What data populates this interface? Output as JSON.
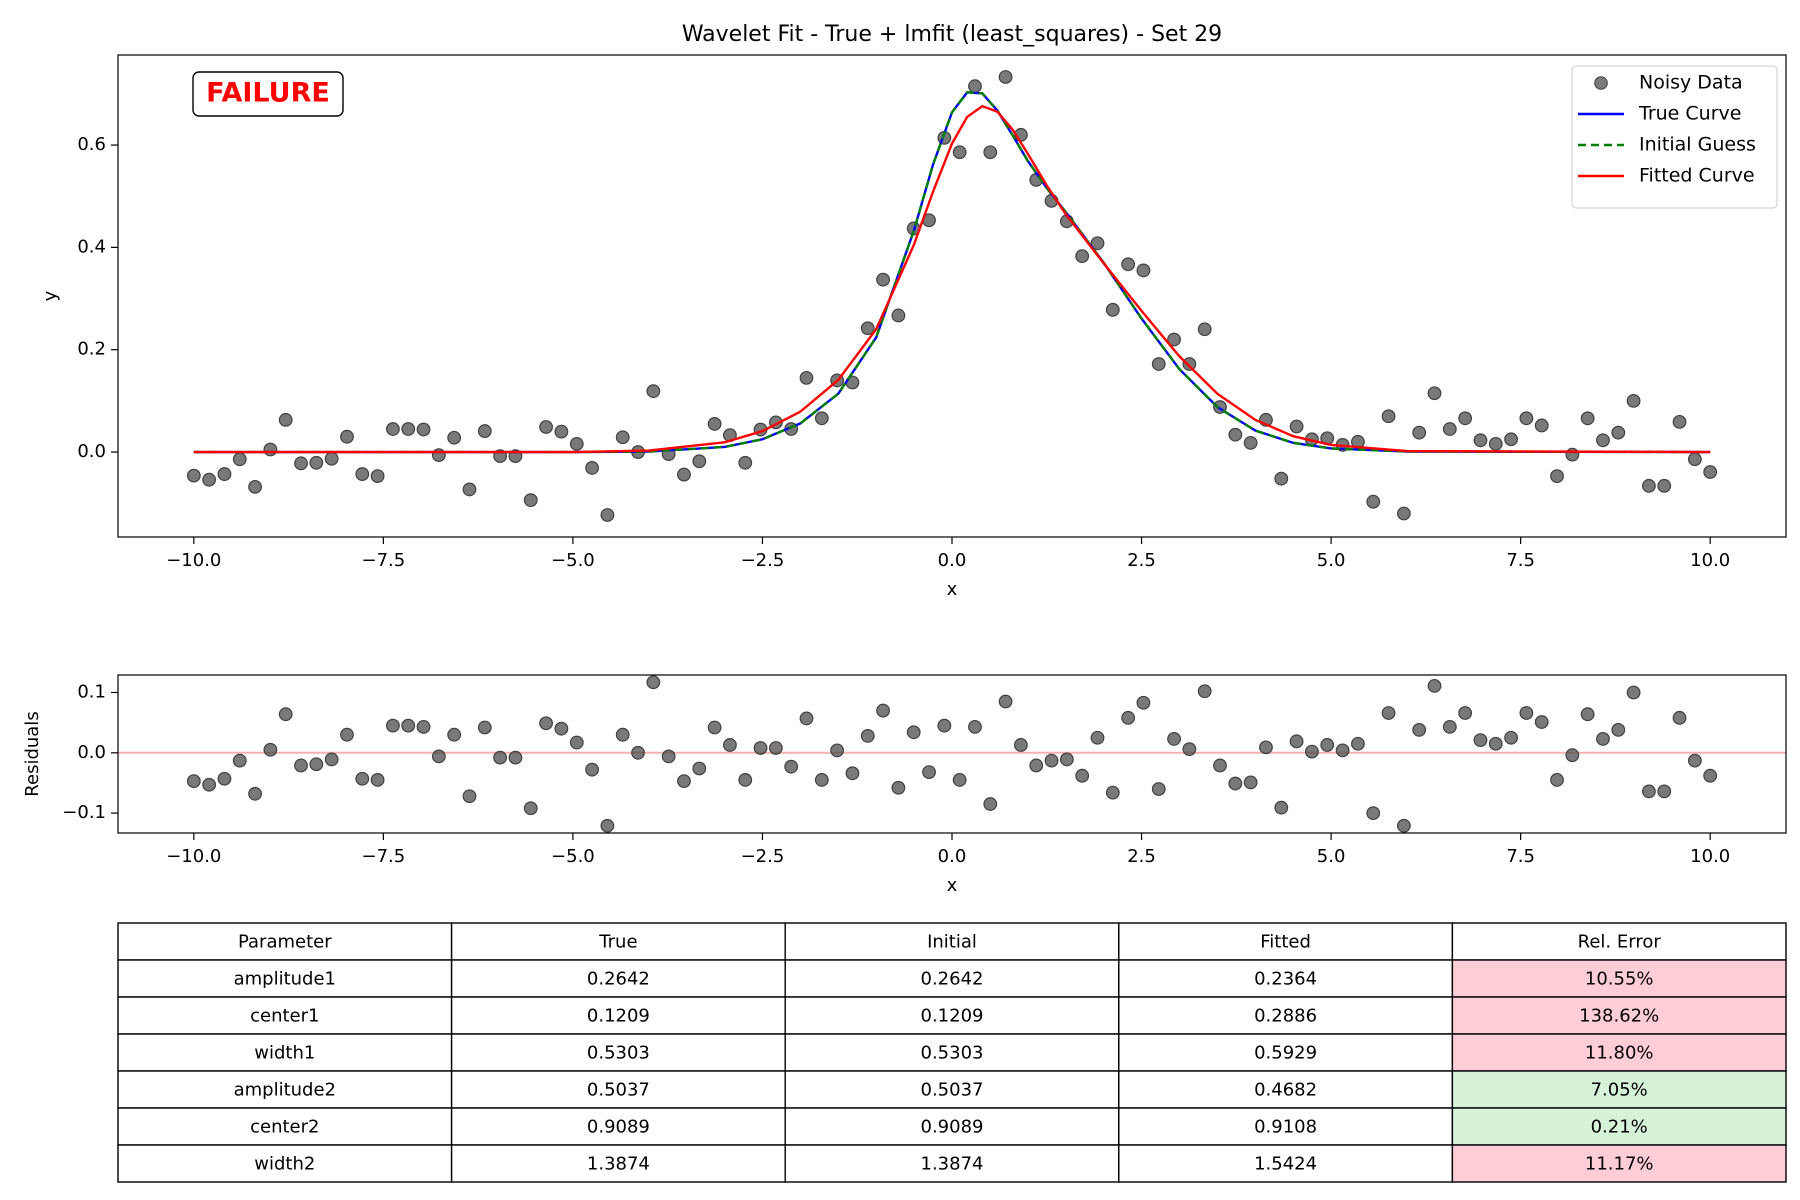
{
  "chart_data": [
    {
      "type": "scatter",
      "title": "Wavelet Fit - True + lmfit (least_squares) - Set 29",
      "annotation": "FAILURE",
      "xlabel": "x",
      "ylabel": "y",
      "xlim": [
        -11,
        11
      ],
      "ylim": [
        -0.166,
        0.776
      ],
      "xticks": [
        {
          "value": -10,
          "label": "−10.0"
        },
        {
          "value": -7.5,
          "label": "−7.5"
        },
        {
          "value": -5,
          "label": "−5.0"
        },
        {
          "value": -2.5,
          "label": "−2.5"
        },
        {
          "value": 0,
          "label": "0.0"
        },
        2.5,
        {
          "value": 5,
          "label": "5.0"
        },
        7.5,
        {
          "value": 10,
          "label": "10.0"
        }
      ],
      "yticks": [
        {
          "value": 0,
          "label": "0.0"
        },
        0.2,
        0.4,
        0.6
      ],
      "legend": "upper right",
      "series": [
        {
          "name": "Noisy Data",
          "type": "scatter",
          "color": "#404040",
          "x": [
            -10,
            -9.798,
            -9.596,
            -9.394,
            -9.192,
            -8.99,
            -8.788,
            -8.586,
            -8.384,
            -8.182,
            -7.98,
            -7.778,
            -7.576,
            -7.374,
            -7.172,
            -6.97,
            -6.768,
            -6.566,
            -6.364,
            -6.162,
            -5.96,
            -5.758,
            -5.556,
            -5.354,
            -5.152,
            -4.949,
            -4.747,
            -4.545,
            -4.343,
            -4.141,
            -3.939,
            -3.737,
            -3.535,
            -3.333,
            -3.131,
            -2.929,
            -2.727,
            -2.525,
            -2.323,
            -2.121,
            -1.919,
            -1.717,
            -1.515,
            -1.313,
            -1.111,
            -0.909,
            -0.707,
            -0.505,
            -0.303,
            -0.101,
            0.101,
            0.303,
            0.505,
            0.707,
            0.909,
            1.111,
            1.313,
            1.515,
            1.717,
            1.919,
            2.121,
            2.323,
            2.525,
            2.727,
            2.929,
            3.131,
            3.333,
            3.535,
            3.737,
            3.939,
            4.141,
            4.343,
            4.545,
            4.747,
            4.949,
            5.152,
            5.354,
            5.556,
            5.758,
            5.96,
            6.162,
            6.364,
            6.566,
            6.768,
            6.97,
            7.172,
            7.374,
            7.576,
            7.778,
            7.98,
            8.182,
            8.384,
            8.586,
            8.788,
            8.99,
            9.192,
            9.394,
            9.596,
            9.798,
            10
          ],
          "values": [
            -0.046,
            -0.054,
            -0.043,
            -0.014,
            -0.068,
            0.005,
            0.063,
            -0.022,
            -0.021,
            -0.013,
            0.03,
            -0.043,
            -0.047,
            0.045,
            0.045,
            0.044,
            -0.006,
            0.028,
            -0.073,
            0.041,
            -0.008,
            -0.008,
            -0.094,
            0.049,
            0.04,
            0.016,
            -0.031,
            -0.123,
            0.029,
            0.0,
            0.119,
            -0.004,
            -0.044,
            -0.018,
            0.055,
            0.033,
            -0.021,
            0.044,
            0.058,
            0.045,
            0.145,
            0.066,
            0.14,
            0.136,
            0.242,
            0.337,
            0.267,
            0.437,
            0.453,
            0.614,
            0.586,
            0.715,
            0.586,
            0.733,
            0.62,
            0.532,
            0.491,
            0.451,
            0.383,
            0.408,
            0.278,
            0.367,
            0.355,
            0.172,
            0.22,
            0.172,
            0.24,
            0.088,
            0.034,
            0.018,
            0.063,
            -0.052,
            0.05,
            0.025,
            0.027,
            0.014,
            0.02,
            -0.097,
            0.07,
            -0.12,
            0.038,
            0.115,
            0.045,
            0.066,
            0.023,
            0.016,
            0.025,
            0.066,
            0.052,
            -0.047,
            -0.005,
            0.066,
            0.023,
            0.038,
            0.1,
            -0.066,
            -0.066,
            0.059,
            -0.014,
            -0.039
          ]
        },
        {
          "name": "True Curve",
          "type": "line",
          "color": "#0000ff",
          "x": [
            -10,
            -5,
            -4,
            -3,
            -2.5,
            -2,
            -1.5,
            -1,
            -0.5,
            -0.25,
            0,
            0.2,
            0.4,
            0.6,
            0.8,
            1,
            1.25,
            1.5,
            2,
            2.5,
            3,
            3.5,
            4,
            4.5,
            5,
            6,
            10
          ],
          "values": [
            0,
            0,
            0.001,
            0.01,
            0.025,
            0.056,
            0.114,
            0.224,
            0.434,
            0.562,
            0.664,
            0.703,
            0.701,
            0.667,
            0.619,
            0.569,
            0.516,
            0.469,
            0.37,
            0.261,
            0.162,
            0.088,
            0.042,
            0.018,
            0.007,
            0.001,
            0
          ]
        },
        {
          "name": "Initial Guess",
          "type": "line",
          "dashed": true,
          "color": "#008000",
          "x": [
            -10,
            -5,
            -4,
            -3,
            -2.5,
            -2,
            -1.5,
            -1,
            -0.5,
            -0.25,
            0,
            0.2,
            0.4,
            0.6,
            0.8,
            1,
            1.25,
            1.5,
            2,
            2.5,
            3,
            3.5,
            4,
            4.5,
            5,
            6,
            10
          ],
          "values": [
            0,
            0,
            0.001,
            0.01,
            0.025,
            0.056,
            0.114,
            0.224,
            0.434,
            0.562,
            0.664,
            0.703,
            0.701,
            0.667,
            0.619,
            0.569,
            0.516,
            0.469,
            0.37,
            0.261,
            0.162,
            0.088,
            0.042,
            0.018,
            0.007,
            0.001,
            0
          ]
        },
        {
          "name": "Fitted Curve",
          "type": "line",
          "color": "#ff0000",
          "x": [
            -10,
            -5,
            -4,
            -3,
            -2.5,
            -2,
            -1.5,
            -1,
            -0.5,
            -0.25,
            0,
            0.2,
            0.4,
            0.6,
            0.8,
            1,
            1.25,
            1.5,
            2,
            2.5,
            3,
            3.5,
            4,
            4.5,
            5,
            6,
            10
          ],
          "values": [
            0,
            0,
            0.003,
            0.019,
            0.041,
            0.079,
            0.141,
            0.24,
            0.406,
            0.509,
            0.603,
            0.655,
            0.676,
            0.665,
            0.63,
            0.583,
            0.521,
            0.465,
            0.369,
            0.276,
            0.187,
            0.114,
            0.063,
            0.031,
            0.014,
            0.002,
            0
          ]
        }
      ]
    },
    {
      "type": "scatter",
      "xlabel": "x",
      "ylabel": "Residuals",
      "xlim": [
        -11,
        11
      ],
      "ylim": [
        -0.133,
        0.129
      ],
      "xticks": [
        {
          "value": -10,
          "label": "−10.0"
        },
        {
          "value": -7.5,
          "label": "−7.5"
        },
        {
          "value": -5,
          "label": "−5.0"
        },
        {
          "value": -2.5,
          "label": "−2.5"
        },
        {
          "value": 0,
          "label": "0.0"
        },
        2.5,
        {
          "value": 5,
          "label": "5.0"
        },
        7.5,
        {
          "value": 10,
          "label": "10.0"
        }
      ],
      "yticks": [
        {
          "value": -0.1,
          "label": "−0.1"
        },
        {
          "value": 0,
          "label": "0.0"
        },
        0.1
      ],
      "reference_line": {
        "value": 0,
        "color": "#f7b0b0"
      },
      "series": [
        {
          "type": "scatter",
          "color": "#404040",
          "x": [
            -10,
            -9.798,
            -9.596,
            -9.394,
            -9.192,
            -8.99,
            -8.788,
            -8.586,
            -8.384,
            -8.182,
            -7.98,
            -7.778,
            -7.576,
            -7.374,
            -7.172,
            -6.97,
            -6.768,
            -6.566,
            -6.364,
            -6.162,
            -5.96,
            -5.758,
            -5.556,
            -5.354,
            -5.152,
            -4.949,
            -4.747,
            -4.545,
            -4.343,
            -4.141,
            -3.939,
            -3.737,
            -3.535,
            -3.333,
            -3.131,
            -2.929,
            -2.727,
            -2.525,
            -2.323,
            -2.121,
            -1.919,
            -1.717,
            -1.515,
            -1.313,
            -1.111,
            -0.909,
            -0.707,
            -0.505,
            -0.303,
            -0.101,
            0.101,
            0.303,
            0.505,
            0.707,
            0.909,
            1.111,
            1.313,
            1.515,
            1.717,
            1.919,
            2.121,
            2.323,
            2.525,
            2.727,
            2.929,
            3.131,
            3.333,
            3.535,
            3.737,
            3.939,
            4.141,
            4.343,
            4.545,
            4.747,
            4.949,
            5.152,
            5.354,
            5.556,
            5.758,
            5.96,
            6.162,
            6.364,
            6.566,
            6.768,
            6.97,
            7.172,
            7.374,
            7.576,
            7.778,
            7.98,
            8.182,
            8.384,
            8.586,
            8.788,
            8.99,
            9.192,
            9.394,
            9.596,
            9.798,
            10
          ],
          "values": [
            -0.047,
            -0.053,
            -0.043,
            -0.013,
            -0.068,
            0.005,
            0.064,
            -0.021,
            -0.019,
            -0.011,
            0.03,
            -0.043,
            -0.045,
            0.045,
            0.045,
            0.043,
            -0.006,
            0.03,
            -0.072,
            0.042,
            -0.008,
            -0.008,
            -0.092,
            0.049,
            0.04,
            0.017,
            -0.028,
            -0.121,
            0.03,
            0.0,
            0.117,
            -0.006,
            -0.047,
            -0.026,
            0.042,
            0.013,
            -0.045,
            0.008,
            0.008,
            -0.023,
            0.057,
            -0.045,
            0.004,
            -0.034,
            0.028,
            0.07,
            -0.058,
            0.034,
            -0.032,
            0.045,
            -0.045,
            0.043,
            -0.085,
            0.085,
            0.013,
            -0.021,
            -0.013,
            -0.011,
            -0.038,
            0.025,
            -0.066,
            0.058,
            0.083,
            -0.06,
            0.023,
            0.006,
            0.102,
            -0.021,
            -0.051,
            -0.049,
            0.009,
            -0.091,
            0.019,
            0.002,
            0.013,
            0.004,
            0.015,
            -0.1,
            0.066,
            -0.121,
            0.038,
            0.111,
            0.043,
            0.066,
            0.021,
            0.015,
            0.025,
            0.066,
            0.051,
            -0.045,
            -0.004,
            0.064,
            0.023,
            0.038,
            0.1,
            -0.064,
            -0.064,
            0.058,
            -0.013,
            -0.038
          ]
        }
      ]
    }
  ],
  "table": {
    "header": [
      "Parameter",
      "True",
      "Initial",
      "Fitted",
      "Rel. Error"
    ],
    "rows": [
      [
        "amplitude1",
        "0.2642",
        "0.2642",
        "0.2364",
        "10.55%"
      ],
      [
        "center1",
        "0.1209",
        "0.1209",
        "0.2886",
        "138.62%"
      ],
      [
        "width1",
        "0.5303",
        "0.5303",
        "0.5929",
        "11.80%"
      ],
      [
        "amplitude2",
        "0.5037",
        "0.5037",
        "0.4682",
        "7.05%"
      ],
      [
        "center2",
        "0.9089",
        "0.9089",
        "0.9108",
        "0.21%"
      ],
      [
        "width2",
        "1.3874",
        "1.3874",
        "1.5424",
        "11.17%"
      ]
    ],
    "error_cell_colors": [
      "#ffcdd6",
      "#ffcdd6",
      "#ffcdd6",
      "#d6f2d9",
      "#d6f2d9",
      "#ffcdd6"
    ]
  }
}
